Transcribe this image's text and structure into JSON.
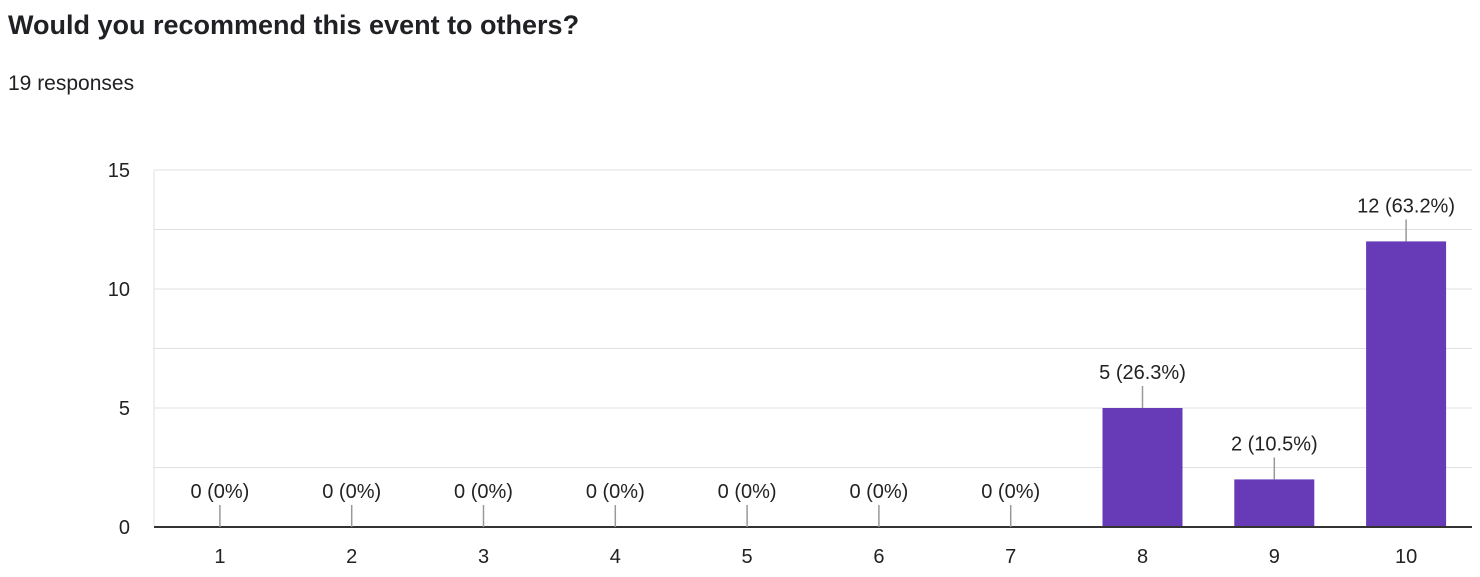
{
  "question": "Would you recommend this event to others?",
  "responses_label": "19 responses",
  "colors": {
    "bar": "#673ab7",
    "grid": "#e0e0e0",
    "axis": "#333333",
    "text": "#222222",
    "leader": "#999999"
  },
  "chart_data": {
    "type": "bar",
    "categories": [
      "1",
      "2",
      "3",
      "4",
      "5",
      "6",
      "7",
      "8",
      "9",
      "10"
    ],
    "values": [
      0,
      0,
      0,
      0,
      0,
      0,
      0,
      5,
      2,
      12
    ],
    "data_labels": [
      "0 (0%)",
      "0 (0%)",
      "0 (0%)",
      "0 (0%)",
      "0 (0%)",
      "0 (0%)",
      "0 (0%)",
      "5 (26.3%)",
      "2 (10.5%)",
      "12 (63.2%)"
    ],
    "ylim": [
      0,
      15
    ],
    "yticks": [
      0,
      5,
      10,
      15
    ],
    "title": "Would you recommend this event to others?",
    "xlabel": "",
    "ylabel": "",
    "grid": true,
    "legend": "none"
  }
}
